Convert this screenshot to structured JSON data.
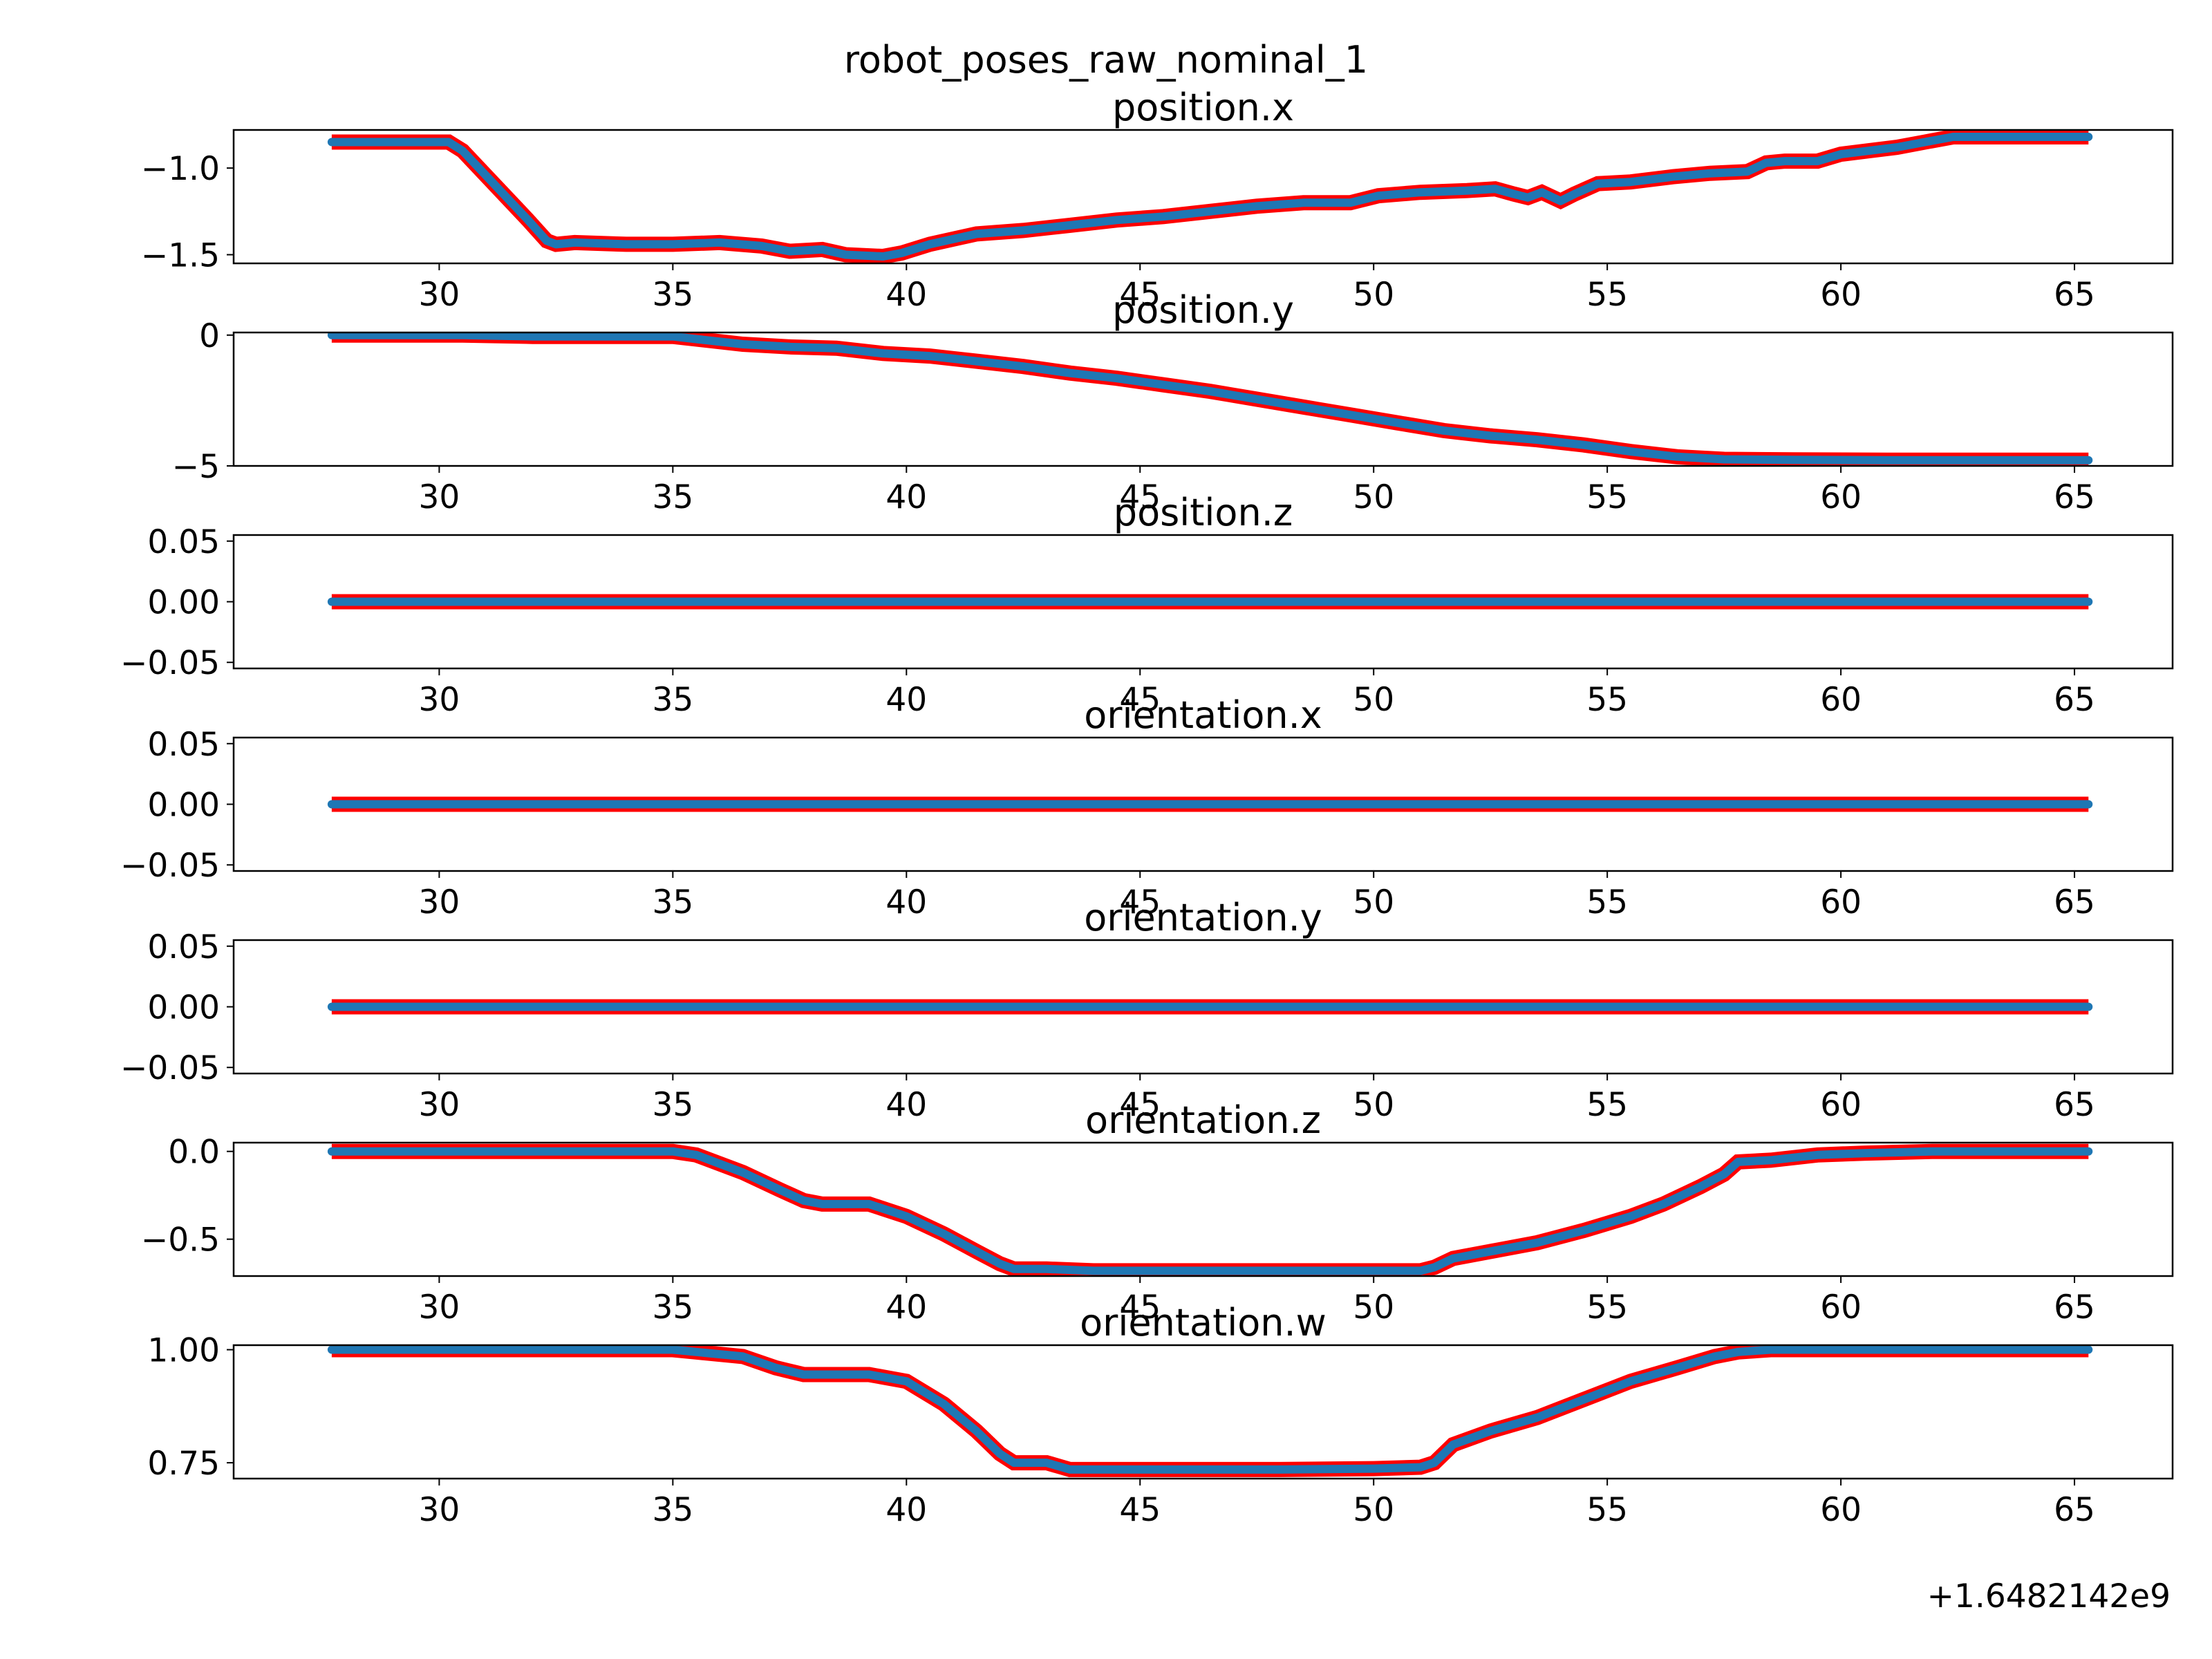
{
  "figure": {
    "suptitle": "robot_poses_raw_nominal_1",
    "x_offset_label": "+1.6482142e9"
  },
  "style": {
    "line_color": "#1f77b4",
    "marker_edge_color": "#ff0000",
    "axes_color": "#000000"
  },
  "chart_data": [
    {
      "type": "line",
      "title": "position.x",
      "xlim": [
        25.6,
        67.1
      ],
      "ylim": [
        -1.55,
        -0.78
      ],
      "xticks": [
        30,
        35,
        40,
        45,
        50,
        55,
        60,
        65
      ],
      "xtick_labels": [
        "30",
        "35",
        "40",
        "45",
        "50",
        "55",
        "60",
        "65"
      ],
      "yticks": [
        -1.0,
        -1.5
      ],
      "ytick_labels": [
        "−1.0",
        "−1.5"
      ],
      "x": [
        27.7,
        30.2,
        30.5,
        31.2,
        31.9,
        32.3,
        32.5,
        32.9,
        34.0,
        35.0,
        36.0,
        36.9,
        37.5,
        38.2,
        38.7,
        39.5,
        39.9,
        40.5,
        41.5,
        42.5,
        43.5,
        44.5,
        45.5,
        46.5,
        47.5,
        48.5,
        49.5,
        50.1,
        51.0,
        52.0,
        52.6,
        53.0,
        53.3,
        53.6,
        54.0,
        54.3,
        54.8,
        55.5,
        56.4,
        57.2,
        58.0,
        58.4,
        58.8,
        59.5,
        60.0,
        60.6,
        61.2,
        61.8,
        62.4,
        63.2,
        64.0,
        65.3
      ],
      "y": [
        -0.85,
        -0.85,
        -0.9,
        -1.1,
        -1.3,
        -1.42,
        -1.44,
        -1.43,
        -1.44,
        -1.44,
        -1.43,
        -1.45,
        -1.48,
        -1.47,
        -1.5,
        -1.51,
        -1.49,
        -1.44,
        -1.38,
        -1.36,
        -1.33,
        -1.3,
        -1.28,
        -1.25,
        -1.22,
        -1.2,
        -1.2,
        -1.16,
        -1.14,
        -1.13,
        -1.12,
        -1.15,
        -1.17,
        -1.14,
        -1.19,
        -1.15,
        -1.09,
        -1.08,
        -1.05,
        -1.03,
        -1.02,
        -0.97,
        -0.96,
        -0.96,
        -0.92,
        -0.9,
        -0.88,
        -0.85,
        -0.82,
        -0.82,
        -0.82,
        -0.82
      ]
    },
    {
      "type": "line",
      "title": "position.y",
      "xlim": [
        25.6,
        67.1
      ],
      "ylim": [
        -5.0,
        0.1
      ],
      "xticks": [
        30,
        35,
        40,
        45,
        50,
        55,
        60,
        65
      ],
      "xtick_labels": [
        "30",
        "35",
        "40",
        "45",
        "50",
        "55",
        "60",
        "65"
      ],
      "yticks": [
        0,
        -5
      ],
      "ytick_labels": [
        "0",
        "−5"
      ],
      "x": [
        27.7,
        30.5,
        32.0,
        33.5,
        35.0,
        35.5,
        36.5,
        37.5,
        38.5,
        39.5,
        40.5,
        41.5,
        42.5,
        43.5,
        44.5,
        45.5,
        46.5,
        47.5,
        48.5,
        49.5,
        50.5,
        51.5,
        52.5,
        53.5,
        54.5,
        55.5,
        56.5,
        57.5,
        59.0,
        61.0,
        63.0,
        65.3
      ],
      "y": [
        0.0,
        0.0,
        -0.05,
        -0.05,
        -0.05,
        -0.15,
        -0.35,
        -0.45,
        -0.5,
        -0.7,
        -0.8,
        -1.0,
        -1.2,
        -1.45,
        -1.65,
        -1.9,
        -2.15,
        -2.45,
        -2.75,
        -3.05,
        -3.35,
        -3.65,
        -3.85,
        -4.0,
        -4.2,
        -4.45,
        -4.65,
        -4.75,
        -4.77,
        -4.78,
        -4.78,
        -4.78
      ]
    },
    {
      "type": "line",
      "title": "position.z",
      "xlim": [
        25.6,
        67.1
      ],
      "ylim": [
        -0.055,
        0.055
      ],
      "xticks": [
        30,
        35,
        40,
        45,
        50,
        55,
        60,
        65
      ],
      "xtick_labels": [
        "30",
        "35",
        "40",
        "45",
        "50",
        "55",
        "60",
        "65"
      ],
      "yticks": [
        0.05,
        0.0,
        -0.05
      ],
      "ytick_labels": [
        "0.05",
        "0.00",
        "−0.05"
      ],
      "x": [
        27.7,
        65.3
      ],
      "y": [
        0.0,
        0.0
      ]
    },
    {
      "type": "line",
      "title": "orientation.x",
      "xlim": [
        25.6,
        67.1
      ],
      "ylim": [
        -0.055,
        0.055
      ],
      "xticks": [
        30,
        35,
        40,
        45,
        50,
        55,
        60,
        65
      ],
      "xtick_labels": [
        "30",
        "35",
        "40",
        "45",
        "50",
        "55",
        "60",
        "65"
      ],
      "yticks": [
        0.05,
        0.0,
        -0.05
      ],
      "ytick_labels": [
        "0.05",
        "0.00",
        "−0.05"
      ],
      "x": [
        27.7,
        65.3
      ],
      "y": [
        0.0,
        0.0
      ]
    },
    {
      "type": "line",
      "title": "orientation.y",
      "xlim": [
        25.6,
        67.1
      ],
      "ylim": [
        -0.055,
        0.055
      ],
      "xticks": [
        30,
        35,
        40,
        45,
        50,
        55,
        60,
        65
      ],
      "xtick_labels": [
        "30",
        "35",
        "40",
        "45",
        "50",
        "55",
        "60",
        "65"
      ],
      "yticks": [
        0.05,
        0.0,
        -0.05
      ],
      "ytick_labels": [
        "0.05",
        "0.00",
        "−0.05"
      ],
      "x": [
        27.7,
        65.3
      ],
      "y": [
        0.0,
        0.0
      ]
    },
    {
      "type": "line",
      "title": "orientation.z",
      "xlim": [
        25.6,
        67.1
      ],
      "ylim": [
        -0.71,
        0.05
      ],
      "xticks": [
        30,
        35,
        40,
        45,
        50,
        55,
        60,
        65
      ],
      "xtick_labels": [
        "30",
        "35",
        "40",
        "45",
        "50",
        "55",
        "60",
        "65"
      ],
      "yticks": [
        0.0,
        -0.5
      ],
      "ytick_labels": [
        "0.0",
        "−0.5"
      ],
      "x": [
        27.7,
        35.0,
        35.5,
        36.5,
        37.3,
        37.8,
        38.2,
        39.2,
        40.0,
        40.8,
        41.5,
        42.0,
        42.3,
        43.0,
        44.0,
        46.0,
        48.0,
        50.0,
        51.0,
        51.3,
        51.7,
        52.5,
        53.5,
        54.5,
        55.5,
        56.2,
        57.0,
        57.5,
        57.8,
        58.5,
        59.5,
        60.5,
        62.0,
        64.0,
        65.3
      ],
      "y": [
        0.0,
        0.0,
        -0.02,
        -0.12,
        -0.22,
        -0.28,
        -0.3,
        -0.3,
        -0.37,
        -0.47,
        -0.57,
        -0.64,
        -0.67,
        -0.67,
        -0.68,
        -0.68,
        -0.68,
        -0.68,
        -0.68,
        -0.66,
        -0.61,
        -0.57,
        -0.52,
        -0.45,
        -0.37,
        -0.3,
        -0.2,
        -0.13,
        -0.06,
        -0.05,
        -0.02,
        -0.01,
        0.0,
        0.0,
        0.0
      ]
    },
    {
      "type": "line",
      "title": "orientation.w",
      "xlim": [
        25.6,
        67.1
      ],
      "ylim": [
        0.715,
        1.01
      ],
      "xticks": [
        30,
        35,
        40,
        45,
        50,
        55,
        60,
        65
      ],
      "xtick_labels": [
        "30",
        "35",
        "40",
        "45",
        "50",
        "55",
        "60",
        "65"
      ],
      "yticks": [
        1.0,
        0.75
      ],
      "ytick_labels": [
        "1.00",
        "0.75"
      ],
      "x": [
        27.7,
        35.0,
        35.5,
        36.5,
        37.2,
        37.8,
        38.2,
        39.2,
        40.0,
        40.8,
        41.5,
        42.0,
        42.3,
        43.0,
        43.5,
        44.5,
        46.0,
        48.0,
        50.0,
        51.0,
        51.3,
        51.7,
        52.5,
        53.5,
        54.5,
        55.5,
        56.5,
        57.3,
        57.8,
        58.5,
        60.0,
        62.0,
        65.3
      ],
      "y": [
        1.0,
        1.0,
        0.995,
        0.985,
        0.96,
        0.945,
        0.945,
        0.945,
        0.93,
        0.88,
        0.82,
        0.77,
        0.75,
        0.75,
        0.735,
        0.735,
        0.735,
        0.735,
        0.737,
        0.74,
        0.75,
        0.79,
        0.82,
        0.85,
        0.89,
        0.93,
        0.96,
        0.985,
        0.995,
        1.0,
        1.0,
        1.0,
        1.0
      ]
    }
  ]
}
